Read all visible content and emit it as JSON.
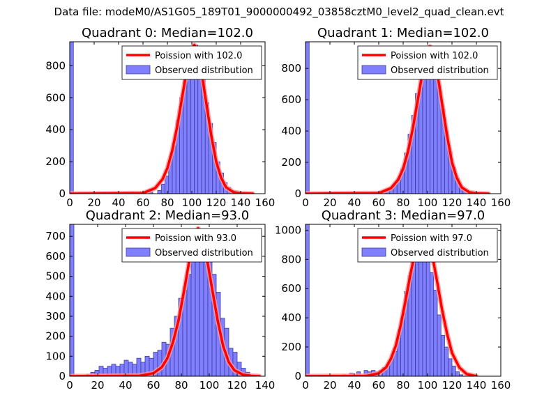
{
  "suptitle": "Data file: modeM0/AS1G05_189T01_9000000492_03858cztM0_level2_quad_clean.evt",
  "colors": {
    "bar_fill": "#8080ff",
    "bar_edge": "#3a3a9e",
    "poisson": "#ff0000",
    "poisson_halo": "#ff9a9a"
  },
  "chart_data": [
    {
      "type": "bar",
      "title": "Quadrant 0: Median=102.0",
      "xlim": [
        0,
        160
      ],
      "ylim": [
        0,
        950
      ],
      "xticks": [
        0,
        20,
        40,
        60,
        80,
        100,
        120,
        140,
        160
      ],
      "yticks": [
        0,
        200,
        400,
        600,
        800
      ],
      "bin_width": 3,
      "bins_left": [
        0,
        50,
        65,
        72,
        75,
        78,
        81,
        84,
        87,
        90,
        93,
        96,
        99,
        102,
        105,
        108,
        111,
        114,
        117,
        120,
        123,
        126,
        129,
        132,
        135
      ],
      "counts": [
        950,
        10,
        10,
        20,
        60,
        110,
        200,
        300,
        460,
        600,
        750,
        840,
        880,
        930,
        870,
        760,
        570,
        440,
        320,
        200,
        130,
        70,
        40,
        20,
        8
      ],
      "poisson_x": [
        0,
        60,
        70,
        76,
        80,
        84,
        88,
        92,
        96,
        100,
        102,
        104,
        108,
        112,
        116,
        120,
        124,
        128,
        134,
        140,
        150
      ],
      "poisson_y": [
        0,
        3,
        35,
        90,
        160,
        270,
        420,
        600,
        780,
        900,
        930,
        910,
        760,
        560,
        360,
        200,
        100,
        40,
        10,
        2,
        0
      ],
      "legend": {
        "line_label": "Poission with 102.0",
        "bar_label": "Observed distribution",
        "location": "upper-right"
      }
    },
    {
      "type": "bar",
      "title": "Quadrant 1: Median=102.0",
      "xlim": [
        0,
        160
      ],
      "ylim": [
        0,
        970
      ],
      "xticks": [
        0,
        20,
        40,
        60,
        80,
        100,
        120,
        140,
        160
      ],
      "yticks": [
        0,
        200,
        400,
        600,
        800
      ],
      "bin_width": 3,
      "bins_left": [
        0,
        57,
        63,
        66,
        69,
        72,
        75,
        78,
        81,
        84,
        87,
        90,
        93,
        96,
        99,
        102,
        105,
        108,
        111,
        114,
        117,
        120,
        123,
        126,
        129,
        132,
        135,
        138
      ],
      "counts": [
        970,
        10,
        10,
        20,
        30,
        60,
        100,
        160,
        260,
        380,
        500,
        640,
        780,
        860,
        920,
        910,
        830,
        690,
        540,
        400,
        270,
        170,
        100,
        50,
        25,
        10,
        5,
        2
      ],
      "poisson_x": [
        0,
        60,
        70,
        76,
        80,
        84,
        88,
        92,
        96,
        100,
        102,
        104,
        108,
        112,
        116,
        120,
        124,
        128,
        134,
        140,
        150
      ],
      "poisson_y": [
        0,
        3,
        35,
        90,
        160,
        270,
        420,
        600,
        780,
        900,
        940,
        920,
        770,
        570,
        370,
        200,
        100,
        40,
        10,
        2,
        0
      ],
      "legend": {
        "line_label": "Poission with 102.0",
        "bar_label": "Observed distribution",
        "location": "upper-right"
      }
    },
    {
      "type": "bar",
      "title": "Quadrant 2: Median=93.0",
      "xlim": [
        0,
        140
      ],
      "ylim": [
        0,
        760
      ],
      "xticks": [
        0,
        20,
        40,
        60,
        80,
        100,
        120,
        140
      ],
      "yticks": [
        0,
        100,
        200,
        300,
        400,
        500,
        600,
        700
      ],
      "bin_width": 3,
      "bins_left": [
        0,
        6,
        12,
        15,
        18,
        21,
        24,
        27,
        30,
        33,
        36,
        39,
        42,
        45,
        48,
        51,
        54,
        57,
        60,
        63,
        66,
        69,
        72,
        75,
        78,
        81,
        84,
        87,
        90,
        93,
        96,
        99,
        102,
        105,
        108,
        111,
        114,
        117,
        120,
        123,
        126
      ],
      "counts": [
        760,
        5,
        10,
        20,
        30,
        50,
        40,
        50,
        60,
        50,
        60,
        80,
        70,
        60,
        90,
        70,
        100,
        90,
        120,
        130,
        170,
        160,
        240,
        300,
        390,
        430,
        510,
        660,
        610,
        690,
        670,
        590,
        510,
        420,
        290,
        240,
        140,
        120,
        70,
        40,
        20
      ],
      "poisson_x": [
        0,
        50,
        60,
        66,
        70,
        74,
        78,
        82,
        86,
        90,
        92,
        94,
        98,
        102,
        106,
        110,
        114,
        118,
        124,
        130,
        136
      ],
      "poisson_y": [
        0,
        2,
        15,
        45,
        90,
        170,
        280,
        430,
        590,
        700,
        740,
        720,
        600,
        440,
        280,
        150,
        70,
        30,
        8,
        2,
        0
      ],
      "legend": {
        "line_label": "Poission with 93.0",
        "bar_label": "Observed distribution",
        "location": "upper-right"
      }
    },
    {
      "type": "bar",
      "title": "Quadrant 3: Median=97.0",
      "xlim": [
        0,
        160
      ],
      "ylim": [
        0,
        1040
      ],
      "xticks": [
        0,
        20,
        40,
        60,
        80,
        100,
        120,
        140,
        160
      ],
      "yticks": [
        0,
        200,
        400,
        600,
        800,
        1000
      ],
      "bin_width": 3,
      "bins_left": [
        0,
        30,
        36,
        42,
        48,
        51,
        54,
        57,
        60,
        63,
        66,
        69,
        72,
        75,
        78,
        81,
        84,
        87,
        90,
        93,
        96,
        99,
        102,
        105,
        108,
        111,
        114,
        117,
        120,
        123,
        126
      ],
      "counts": [
        1040,
        10,
        20,
        30,
        40,
        30,
        40,
        30,
        40,
        60,
        80,
        120,
        170,
        260,
        400,
        580,
        690,
        800,
        960,
        970,
        960,
        940,
        710,
        590,
        420,
        280,
        200,
        120,
        70,
        30,
        10
      ],
      "poisson_x": [
        0,
        50,
        60,
        66,
        70,
        74,
        78,
        82,
        86,
        90,
        94,
        97,
        100,
        104,
        108,
        112,
        116,
        120,
        126,
        132,
        140
      ],
      "poisson_y": [
        0,
        2,
        20,
        60,
        120,
        210,
        350,
        520,
        700,
        860,
        960,
        980,
        950,
        820,
        640,
        450,
        290,
        160,
        60,
        15,
        0
      ],
      "legend": {
        "line_label": "Poission with 97.0",
        "bar_label": "Observed distribution",
        "location": "upper-right"
      }
    }
  ]
}
